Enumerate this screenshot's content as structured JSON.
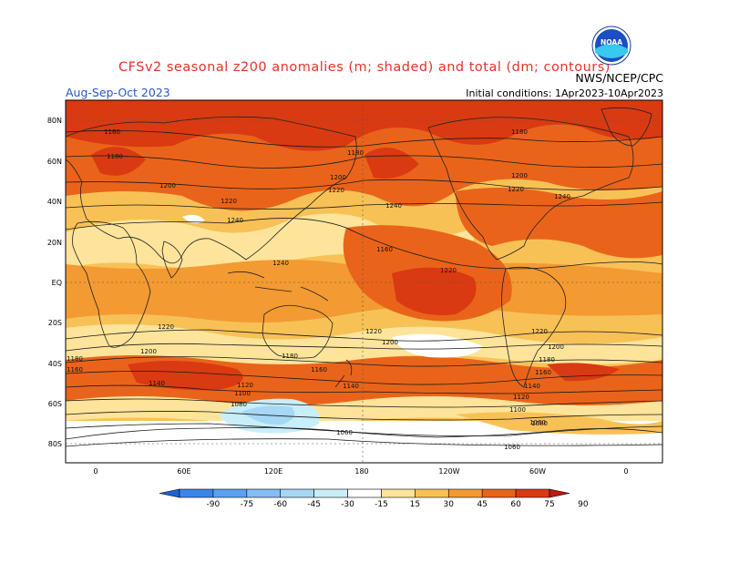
{
  "header": {
    "title": "CFSv2 seasonal z200 anomalies (m; shaded) and total (dm; contours)",
    "period": "Aug-Sep-Oct 2023",
    "initial_conditions": "Initial conditions: 1Apr2023-10Apr2023",
    "agency": "NWS/NCEP/CPC",
    "logo_text": "NOAA"
  },
  "map": {
    "lat_labels": [
      "80N",
      "60N",
      "40N",
      "20N",
      "EQ",
      "20S",
      "40S",
      "60S",
      "80S"
    ],
    "lon_labels": [
      "0",
      "60E",
      "120E",
      "180",
      "120W",
      "60W",
      "0"
    ],
    "contour_labels": [
      "1160",
      "1180",
      "1200",
      "1220",
      "1240",
      "1240",
      "1220",
      "1180",
      "1200",
      "1220",
      "1240",
      "1160",
      "1180",
      "1200",
      "1220",
      "1240",
      "1220",
      "1200",
      "1180",
      "1160",
      "1140",
      "1120",
      "1100",
      "1080",
      "1220",
      "1200",
      "1180",
      "1160",
      "1140",
      "1120",
      "1100",
      "1080",
      "1060",
      "1060",
      "1060",
      "1180",
      "1160",
      "1140",
      "1220",
      "1200"
    ],
    "colorbar": {
      "ticks": [
        "-90",
        "-75",
        "-60",
        "-45",
        "-30",
        "-15",
        "15",
        "30",
        "45",
        "60",
        "75",
        "90"
      ],
      "colors": [
        "#1a64d8",
        "#3a86e8",
        "#5aa2f0",
        "#84bdf2",
        "#a6d7f5",
        "#c8eefa",
        "#ffffff",
        "#fde49a",
        "#f8c156",
        "#f39a32",
        "#e9641a",
        "#d93a12",
        "#b81a10"
      ]
    }
  }
}
